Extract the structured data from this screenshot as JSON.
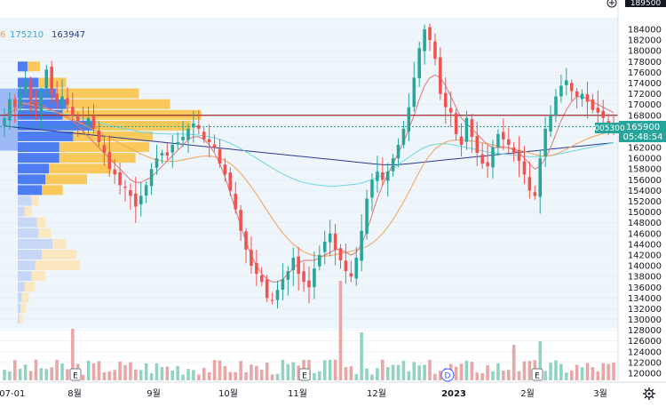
{
  "legend": {
    "items": [
      {
        "text": "6",
        "color": "#e8a24a"
      },
      {
        "text": "175210",
        "color": "#3aa6d8"
      },
      {
        "text": "163947",
        "color": "#2d3a8c"
      }
    ]
  },
  "price_axis": {
    "top_label": "189500",
    "labels": [
      "184000",
      "182000",
      "180000",
      "178000",
      "176000",
      "174000",
      "172000",
      "170000",
      "168000",
      "166000",
      "164000",
      "162000",
      "160000",
      "158000",
      "156000",
      "154000",
      "152000",
      "150000",
      "148000",
      "146000",
      "144000",
      "142000",
      "140000",
      "138000",
      "136000",
      "134000",
      "132000",
      "130000",
      "128000",
      "126000",
      "124000",
      "122000",
      "120000"
    ],
    "current_price_label": "165900",
    "countdown_label": "05:48:54",
    "change_label": "005300",
    "current_color": "#26a69a"
  },
  "time_axis": {
    "labels": [
      "-07-01",
      "8월",
      "9월",
      "10월",
      "11월",
      "12월",
      "2023",
      "2월",
      "3월"
    ]
  },
  "events": [
    {
      "label": "E",
      "date": "2022-07-28"
    },
    {
      "label": "E",
      "date": "2022-11-03"
    },
    {
      "label": "D",
      "date": "2022-12-28"
    },
    {
      "label": "E",
      "date": "2023-02-08"
    }
  ],
  "toolbar": {
    "plus_icon": "plus-circle-icon",
    "settings_icon": "gear-icon"
  },
  "colors": {
    "up": "#26a69a",
    "down": "#ef5350",
    "ma_short": "#e57373",
    "ma_mid": "#f0a35a",
    "ma_long": "#6fd6e0",
    "ma_longest": "#2d3a8c",
    "support_line": "#9b2b2b",
    "profile_up": "#f9c95c",
    "profile_down": "#4d7df0",
    "bg_panel": "#eef6fc"
  },
  "chart_data": {
    "type": "candlestick",
    "price_range": [
      118000,
      190000
    ],
    "closes": [
      167500,
      171000,
      169500,
      172000,
      174000,
      171000,
      169000,
      172500,
      176500,
      172000,
      170500,
      171500,
      170000,
      168000,
      167000,
      166500,
      167500,
      165500,
      163000,
      161000,
      158000,
      157000,
      155000,
      154500,
      153000,
      151000,
      153000,
      155000,
      158000,
      160000,
      161000,
      160500,
      162500,
      163000,
      164000,
      165500,
      166500,
      165500,
      163500,
      163000,
      162000,
      159000,
      157000,
      154000,
      150500,
      146500,
      143000,
      140000,
      138500,
      137000,
      134000,
      133500,
      135500,
      137500,
      139000,
      141500,
      138500,
      137000,
      136000,
      139500,
      142000,
      144500,
      146000,
      143000,
      141000,
      139000,
      138000,
      141500,
      146500,
      152500,
      156000,
      157500,
      156000,
      157500,
      160000,
      162500,
      165500,
      169500,
      175000,
      180500,
      184000,
      182000,
      178500,
      172000,
      169500,
      168500,
      164500,
      162500,
      167500,
      164000,
      161000,
      159000,
      158500,
      162000,
      164500,
      163500,
      162500,
      161000,
      159500,
      157000,
      154000,
      153000,
      160000,
      165500,
      168000,
      171500,
      173500,
      174500,
      172500,
      171500,
      172000,
      170500,
      169000,
      168500,
      167500,
      166500,
      165900
    ],
    "ma_short": [
      168000,
      168500,
      169000,
      169500,
      170000,
      170500,
      170500,
      170000,
      169500,
      169000,
      168500,
      168000,
      167500,
      167000,
      166000,
      165000,
      164000,
      163000,
      162000,
      161000,
      160000,
      159000,
      158000,
      157000,
      156000,
      155500,
      155500,
      156000,
      156500,
      157500,
      158500,
      159500,
      160500,
      161500,
      162500,
      163500,
      164000,
      164000,
      163500,
      162500,
      161000,
      159000,
      156500,
      153500,
      150500,
      147500,
      144500,
      142000,
      140000,
      138500,
      137500,
      137000,
      137000,
      137500,
      138500,
      139500,
      140500,
      141000,
      141000,
      141000,
      141500,
      142000,
      142500,
      143000,
      143000,
      142500,
      142000,
      142500,
      144000,
      146500,
      149500,
      152500,
      155000,
      157000,
      159000,
      161000,
      163000,
      165500,
      168000,
      171000,
      173500,
      175000,
      175500,
      175000,
      173500,
      171500,
      169500,
      167500,
      166500,
      165500,
      164500,
      163500,
      162500,
      162000,
      162000,
      162000,
      162000,
      161500,
      161000,
      160000,
      159000,
      158000,
      158500,
      160000,
      162000,
      164500,
      167000,
      169000,
      170500,
      171500,
      171500,
      171000,
      170500,
      170000,
      169500,
      169000,
      168500
    ],
    "ma_mid": [
      170000,
      170200,
      170300,
      170300,
      170200,
      170000,
      169800,
      169500,
      169200,
      168900,
      168600,
      168200,
      167800,
      167300,
      166800,
      166300,
      165800,
      165300,
      164800,
      164300,
      163800,
      163300,
      162800,
      162300,
      161800,
      161300,
      160800,
      160400,
      160000,
      159700,
      159500,
      159400,
      159400,
      159500,
      159700,
      159900,
      160100,
      160300,
      160400,
      160400,
      160300,
      160000,
      159600,
      159000,
      158200,
      157200,
      156000,
      154700,
      153300,
      151800,
      150300,
      148800,
      147400,
      146100,
      145000,
      144000,
      143200,
      142600,
      142200,
      141900,
      141800,
      141800,
      141900,
      142100,
      142300,
      142500,
      142700,
      142900,
      143200,
      143600,
      144200,
      145000,
      146000,
      147200,
      148600,
      150200,
      151900,
      153700,
      155600,
      157500,
      159200,
      160600,
      161700,
      162500,
      163000,
      163300,
      163400,
      163400,
      163300,
      163200,
      163100,
      162900,
      162700,
      162500,
      162300,
      162100,
      161900,
      161700,
      161500,
      161300,
      161000,
      160700,
      160500,
      160400,
      160500,
      160800,
      161200,
      161700,
      162200,
      162700,
      163200,
      163600,
      164000,
      164300,
      164600,
      164800,
      165000
    ],
    "ma_long": [
      169000,
      169100,
      169200,
      169200,
      169200,
      169100,
      169000,
      168900,
      168800,
      168700,
      168500,
      168300,
      168100,
      167900,
      167600,
      167400,
      167100,
      166900,
      166600,
      166400,
      166100,
      165900,
      165700,
      165500,
      165300,
      165100,
      164900,
      164800,
      164700,
      164600,
      164600,
      164500,
      164500,
      164500,
      164500,
      164500,
      164400,
      164300,
      164200,
      164000,
      163800,
      163500,
      163200,
      162800,
      162300,
      161800,
      161200,
      160600,
      160000,
      159400,
      158800,
      158200,
      157600,
      157100,
      156600,
      156200,
      155800,
      155500,
      155300,
      155100,
      155000,
      154900,
      154800,
      154800,
      154900,
      155000,
      155100,
      155200,
      155400,
      155700,
      156000,
      156400,
      156900,
      157500,
      158100,
      158800,
      159500,
      160200,
      160900,
      161500,
      162000,
      162400,
      162600,
      162700,
      162700,
      162600,
      162400,
      162200,
      162000,
      161800,
      161600,
      161400,
      161200,
      161000,
      160900,
      160800,
      160700,
      160600,
      160500,
      160400,
      160300,
      160300,
      160300,
      160400,
      160500,
      160700,
      160900,
      161100,
      161300,
      161500,
      161700,
      161900,
      162100,
      162300,
      162500,
      162700,
      162900
    ],
    "ma_longest": [
      166000,
      165900,
      165800,
      165700,
      165600,
      165500,
      165400,
      165300,
      165200,
      165100,
      165000,
      164900,
      164800,
      164700,
      164600,
      164500,
      164400,
      164300,
      164200,
      164100,
      164000,
      163900,
      163800,
      163700,
      163600,
      163500,
      163400,
      163300,
      163200,
      163100,
      163000,
      162900,
      162800,
      162700,
      162600,
      162500,
      162400,
      162300,
      162200,
      162100,
      162000,
      161900,
      161800,
      161700,
      161600,
      161500,
      161400,
      161300,
      161200,
      161100,
      161000,
      160900,
      160800,
      160700,
      160600,
      160500,
      160400,
      160300,
      160200,
      160100,
      160000,
      159900,
      159800,
      159700,
      159600,
      159500,
      159400,
      159300,
      159200,
      159100,
      159000,
      158900,
      158800,
      158800,
      158800,
      158800,
      158900,
      159000,
      159100,
      159200,
      159300,
      159400,
      159500,
      159600,
      159700,
      159800,
      159900,
      160000,
      160100,
      160200,
      160300,
      160400,
      160500,
      160600,
      160700,
      160800,
      160900,
      161000,
      161100,
      161200,
      161300,
      161400,
      161500,
      161600,
      161700,
      161800,
      161900,
      162000,
      162100,
      162200,
      162300,
      162400,
      162500,
      162600,
      162700,
      162800,
      162900
    ],
    "volume_profile": [
      {
        "price": 177000,
        "up": 18,
        "down": 14
      },
      {
        "price": 174000,
        "up": 40,
        "down": 30
      },
      {
        "price": 172000,
        "up": 120,
        "down": 55
      },
      {
        "price": 170000,
        "up": 150,
        "down": 70
      },
      {
        "price": 168000,
        "up": 200,
        "down": 65
      },
      {
        "price": 166000,
        "up": 140,
        "down": 110
      },
      {
        "price": 164000,
        "up": 115,
        "down": 80
      },
      {
        "price": 162000,
        "up": 130,
        "down": 60
      },
      {
        "price": 160000,
        "up": 110,
        "down": 60
      },
      {
        "price": 158000,
        "up": 90,
        "down": 45
      },
      {
        "price": 156000,
        "up": 60,
        "down": 40
      },
      {
        "price": 154000,
        "up": 30,
        "down": 35
      },
      {
        "price": 152000,
        "up": 10,
        "down": 20
      },
      {
        "price": 150000,
        "up": 10,
        "down": 10
      },
      {
        "price": 148000,
        "up": 12,
        "down": 28
      },
      {
        "price": 146000,
        "up": 18,
        "down": 30
      },
      {
        "price": 144000,
        "up": 20,
        "down": 50
      },
      {
        "price": 142000,
        "up": 50,
        "down": 35
      },
      {
        "price": 140000,
        "up": 65,
        "down": 25
      },
      {
        "price": 138000,
        "up": 20,
        "down": 20
      },
      {
        "price": 136000,
        "up": 15,
        "down": 10
      },
      {
        "price": 134000,
        "up": 10,
        "down": 6
      },
      {
        "price": 132000,
        "up": 8,
        "down": 4
      },
      {
        "price": 130000,
        "up": 5,
        "down": 2
      }
    ],
    "support_line": 168000,
    "volume_scale": 1.0
  }
}
